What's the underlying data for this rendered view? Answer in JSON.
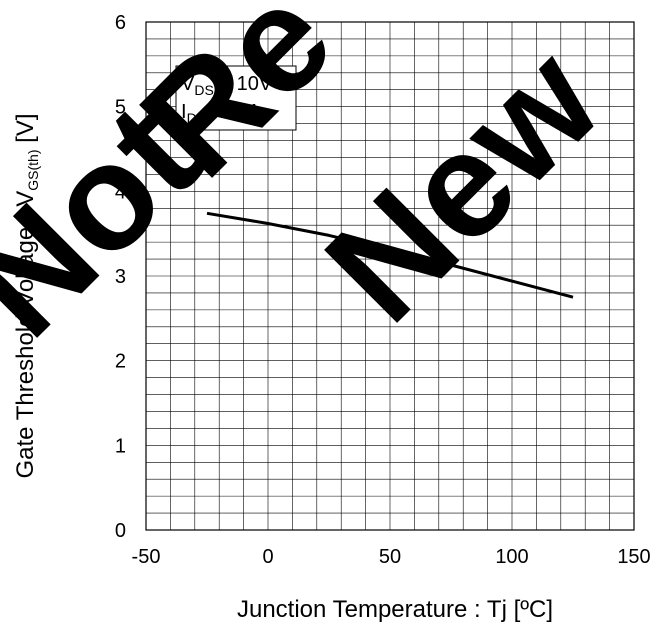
{
  "chart_data": {
    "type": "line",
    "xlabel": "Junction Temperature : Tj [ºC]",
    "ylabel": {
      "main": "Gate Threshold Voltage : V",
      "sub": "GS(th)",
      "unit": " [V]"
    },
    "xlim": [
      -50,
      150
    ],
    "ylim": [
      0,
      6
    ],
    "x_ticks": [
      -50,
      0,
      50,
      100,
      150
    ],
    "y_ticks": [
      0,
      1,
      2,
      3,
      4,
      5,
      6
    ],
    "x_tick_labels": [
      "-50",
      "0",
      "50",
      "100",
      "150"
    ],
    "y_tick_labels": [
      "0",
      "1",
      "2",
      "3",
      "4",
      "5",
      "6"
    ],
    "grid": true,
    "minor_x_step": 10,
    "minor_y_step": 0.2,
    "conditions": [
      {
        "main": "V",
        "sub": "DS",
        "rest": " = 10V"
      },
      {
        "main": "I",
        "sub": "D",
        "rest": " = 1mA"
      }
    ],
    "series": [
      {
        "x": [
          -25,
          0,
          25,
          50,
          75,
          100,
          125
        ],
        "y": [
          3.74,
          3.62,
          3.48,
          3.31,
          3.13,
          2.94,
          2.75
        ],
        "color": "#000000"
      }
    ],
    "watermark": {
      "text": "Not Recommended for New Designs",
      "visible": [
        "Not",
        "Re",
        "New"
      ],
      "color": "#7f7f7f"
    }
  }
}
